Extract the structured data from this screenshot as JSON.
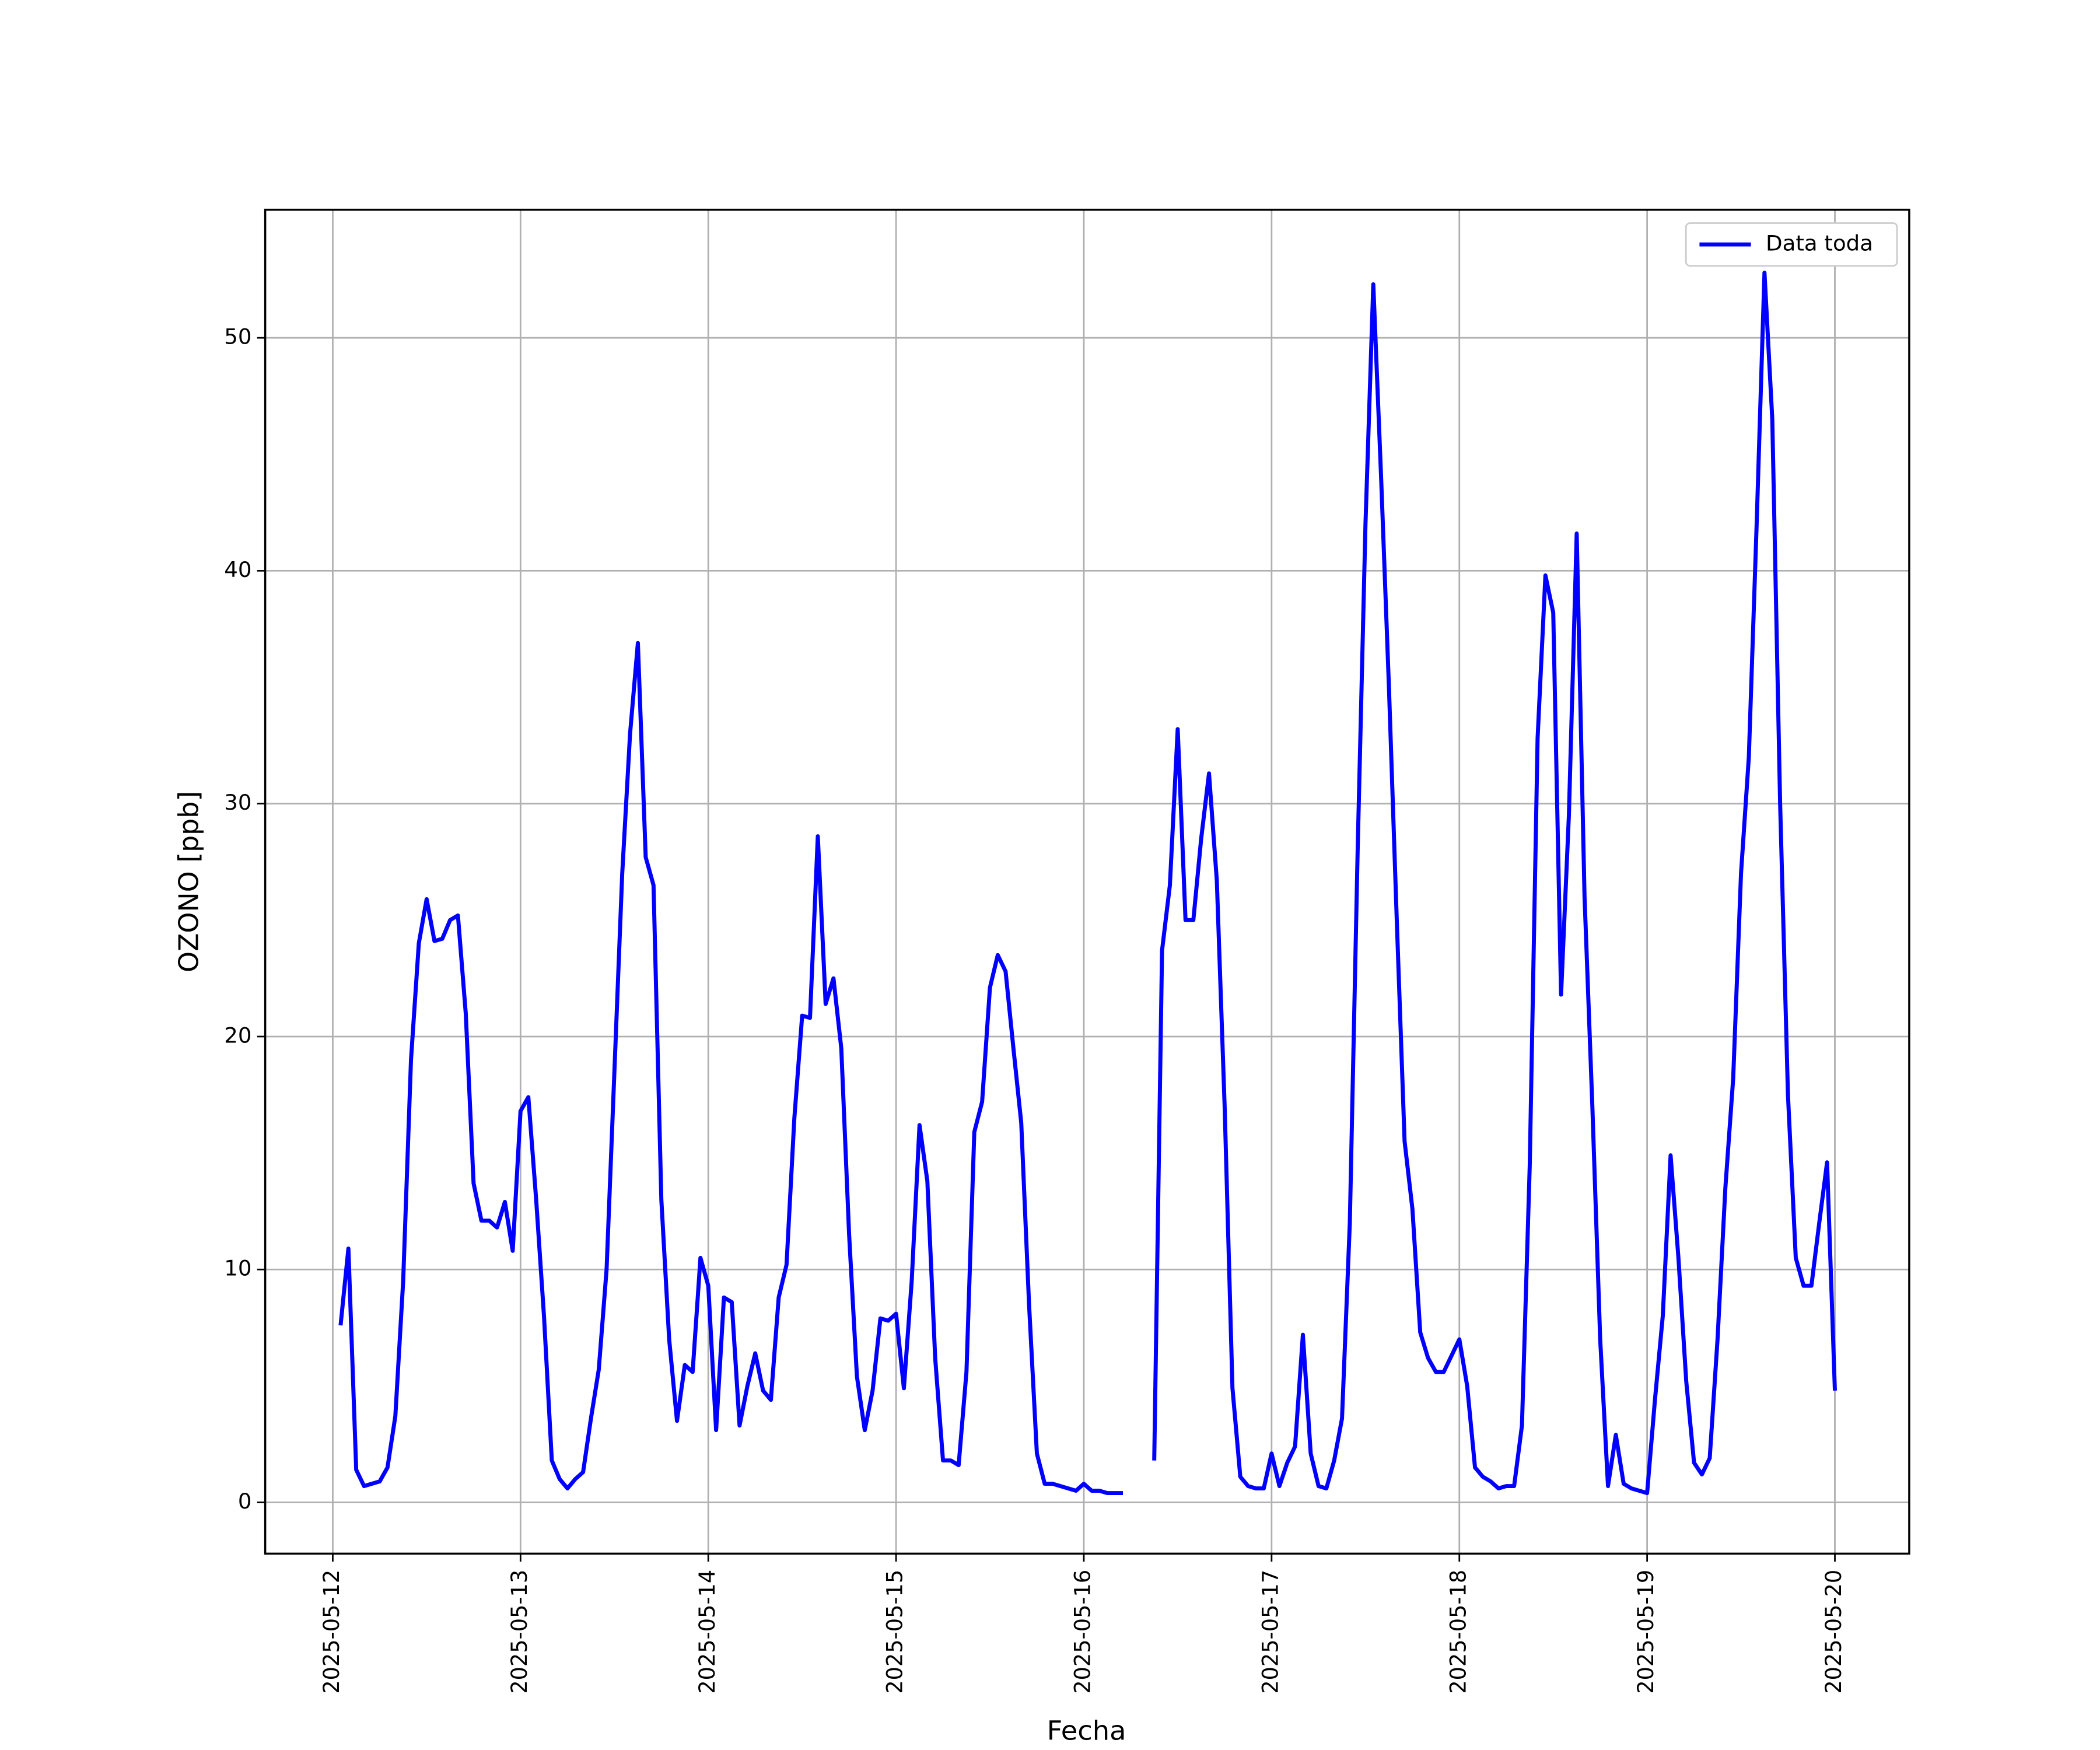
{
  "chart_data": {
    "type": "line",
    "xlabel": "Fecha",
    "ylabel": "OZONO [ppb]",
    "x": [
      "2025-05-12T01:00",
      "2025-05-12T02:00",
      "2025-05-12T03:00",
      "2025-05-12T04:00",
      "2025-05-12T05:00",
      "2025-05-12T06:00",
      "2025-05-12T07:00",
      "2025-05-12T08:00",
      "2025-05-12T09:00",
      "2025-05-12T10:00",
      "2025-05-12T11:00",
      "2025-05-12T12:00",
      "2025-05-12T13:00",
      "2025-05-12T14:00",
      "2025-05-12T15:00",
      "2025-05-12T16:00",
      "2025-05-12T17:00",
      "2025-05-12T18:00",
      "2025-05-12T19:00",
      "2025-05-12T20:00",
      "2025-05-12T21:00",
      "2025-05-12T22:00",
      "2025-05-12T23:00",
      "2025-05-13T00:00",
      "2025-05-13T01:00",
      "2025-05-13T02:00",
      "2025-05-13T03:00",
      "2025-05-13T04:00",
      "2025-05-13T05:00",
      "2025-05-13T06:00",
      "2025-05-13T07:00",
      "2025-05-13T08:00",
      "2025-05-13T09:00",
      "2025-05-13T10:00",
      "2025-05-13T11:00",
      "2025-05-13T12:00",
      "2025-05-13T13:00",
      "2025-05-13T14:00",
      "2025-05-13T15:00",
      "2025-05-13T16:00",
      "2025-05-13T17:00",
      "2025-05-13T18:00",
      "2025-05-13T19:00",
      "2025-05-13T20:00",
      "2025-05-13T21:00",
      "2025-05-13T22:00",
      "2025-05-13T23:00",
      "2025-05-14T00:00",
      "2025-05-14T01:00",
      "2025-05-14T02:00",
      "2025-05-14T03:00",
      "2025-05-14T04:00",
      "2025-05-14T05:00",
      "2025-05-14T06:00",
      "2025-05-14T07:00",
      "2025-05-14T08:00",
      "2025-05-14T09:00",
      "2025-05-14T10:00",
      "2025-05-14T11:00",
      "2025-05-14T12:00",
      "2025-05-14T13:00",
      "2025-05-14T14:00",
      "2025-05-14T15:00",
      "2025-05-14T16:00",
      "2025-05-14T17:00",
      "2025-05-14T18:00",
      "2025-05-14T19:00",
      "2025-05-14T20:00",
      "2025-05-14T21:00",
      "2025-05-14T22:00",
      "2025-05-14T23:00",
      "2025-05-15T00:00",
      "2025-05-15T01:00",
      "2025-05-15T02:00",
      "2025-05-15T03:00",
      "2025-05-15T04:00",
      "2025-05-15T05:00",
      "2025-05-15T06:00",
      "2025-05-15T07:00",
      "2025-05-15T08:00",
      "2025-05-15T09:00",
      "2025-05-15T10:00",
      "2025-05-15T11:00",
      "2025-05-15T12:00",
      "2025-05-15T13:00",
      "2025-05-15T14:00",
      "2025-05-15T15:00",
      "2025-05-15T16:00",
      "2025-05-15T17:00",
      "2025-05-15T18:00",
      "2025-05-15T19:00",
      "2025-05-15T20:00",
      "2025-05-15T21:00",
      "2025-05-15T22:00",
      "2025-05-15T23:00",
      "2025-05-16T00:00",
      "2025-05-16T01:00",
      "2025-05-16T02:00",
      "2025-05-16T03:00",
      "2025-05-16T04:00",
      "2025-05-16T05:00",
      "2025-05-16T06:00",
      "2025-05-16T07:00",
      "2025-05-16T08:00",
      "2025-05-16T09:00",
      "2025-05-16T10:00",
      "2025-05-16T11:00",
      "2025-05-16T12:00",
      "2025-05-16T13:00",
      "2025-05-16T14:00",
      "2025-05-16T15:00",
      "2025-05-16T16:00",
      "2025-05-16T17:00",
      "2025-05-16T18:00",
      "2025-05-16T19:00",
      "2025-05-16T20:00",
      "2025-05-16T21:00",
      "2025-05-16T22:00",
      "2025-05-16T23:00",
      "2025-05-17T00:00",
      "2025-05-17T01:00",
      "2025-05-17T02:00",
      "2025-05-17T03:00",
      "2025-05-17T04:00",
      "2025-05-17T05:00",
      "2025-05-17T06:00",
      "2025-05-17T07:00",
      "2025-05-17T08:00",
      "2025-05-17T09:00",
      "2025-05-17T10:00",
      "2025-05-17T11:00",
      "2025-05-17T12:00",
      "2025-05-17T13:00",
      "2025-05-17T14:00",
      "2025-05-17T15:00",
      "2025-05-17T16:00",
      "2025-05-17T17:00",
      "2025-05-17T18:00",
      "2025-05-17T19:00",
      "2025-05-17T20:00",
      "2025-05-17T21:00",
      "2025-05-17T22:00",
      "2025-05-17T23:00",
      "2025-05-18T00:00",
      "2025-05-18T01:00",
      "2025-05-18T02:00",
      "2025-05-18T03:00",
      "2025-05-18T04:00",
      "2025-05-18T05:00",
      "2025-05-18T06:00",
      "2025-05-18T07:00",
      "2025-05-18T08:00",
      "2025-05-18T09:00",
      "2025-05-18T10:00",
      "2025-05-18T11:00",
      "2025-05-18T12:00",
      "2025-05-18T13:00",
      "2025-05-18T14:00",
      "2025-05-18T15:00",
      "2025-05-18T16:00",
      "2025-05-18T17:00",
      "2025-05-18T18:00",
      "2025-05-18T19:00",
      "2025-05-18T20:00",
      "2025-05-18T21:00",
      "2025-05-18T22:00",
      "2025-05-18T23:00",
      "2025-05-19T00:00",
      "2025-05-19T01:00",
      "2025-05-19T02:00",
      "2025-05-19T03:00",
      "2025-05-19T04:00",
      "2025-05-19T05:00",
      "2025-05-19T06:00",
      "2025-05-19T07:00",
      "2025-05-19T08:00",
      "2025-05-19T09:00",
      "2025-05-19T10:00",
      "2025-05-19T11:00",
      "2025-05-19T12:00",
      "2025-05-19T13:00",
      "2025-05-19T14:00",
      "2025-05-19T15:00",
      "2025-05-19T16:00",
      "2025-05-19T17:00",
      "2025-05-19T18:00",
      "2025-05-19T19:00",
      "2025-05-19T20:00",
      "2025-05-19T21:00",
      "2025-05-19T22:00",
      "2025-05-19T23:00",
      "2025-05-20T00:00"
    ],
    "series": [
      {
        "name": "Data toda",
        "color": "#0000ff",
        "values": [
          7.6,
          10.9,
          1.4,
          0.7,
          0.8,
          0.9,
          1.5,
          3.7,
          9.5,
          19,
          24,
          25.9,
          24.1,
          24.2,
          25,
          25.2,
          21,
          13.7,
          12.1,
          12.1,
          11.8,
          12.9,
          10.8,
          16.8,
          17.4,
          13,
          8,
          1.8,
          1,
          0.6,
          1,
          1.3,
          3.6,
          5.7,
          10,
          18.5,
          27,
          33,
          36.9,
          27.7,
          26.5,
          13,
          7,
          3.5,
          5.9,
          5.6,
          10.5,
          9.3,
          3.1,
          8.8,
          8.6,
          3.3,
          5,
          6.4,
          4.8,
          4.4,
          8.8,
          10.2,
          16.5,
          20.9,
          20.8,
          28.6,
          21.4,
          22.5,
          19.5,
          11.5,
          5.4,
          3.1,
          4.8,
          7.9,
          7.8,
          8.1,
          4.9,
          9.5,
          16.2,
          13.8,
          6.2,
          1.8,
          1.8,
          1.6,
          5.6,
          15.9,
          17.2,
          22.1,
          23.5,
          22.8,
          19.5,
          16.3,
          8.5,
          2.1,
          0.8,
          0.8,
          0.7,
          0.6,
          0.5,
          0.8,
          0.5,
          0.5,
          0.4,
          0.4,
          0.4,
          null,
          null,
          null,
          1.8,
          23.7,
          26.5,
          33.2,
          25,
          25,
          28.5,
          31.3,
          26.7,
          17,
          4.9,
          1.1,
          0.7,
          0.6,
          0.6,
          2.1,
          0.7,
          1.7,
          2.4,
          7.2,
          2.1,
          0.7,
          0.6,
          1.8,
          3.6,
          12,
          28,
          42,
          52.3,
          44,
          35,
          25,
          15.5,
          12.6,
          7.3,
          6.2,
          5.6,
          5.6,
          6.3,
          7,
          5,
          1.5,
          1.1,
          0.9,
          0.6,
          0.7,
          0.7,
          3.3,
          14.5,
          32.8,
          39.8,
          38.2,
          21.8,
          29.5,
          41.6,
          26,
          17,
          7,
          0.7,
          2.9,
          0.8,
          0.6,
          0.5,
          0.4,
          4.4,
          8,
          14.9,
          10.5,
          5.2,
          1.7,
          1.2,
          1.9,
          7,
          13.5,
          18.2,
          27,
          32,
          42,
          52.8,
          46.5,
          30,
          17.5,
          10.5,
          9.3,
          9.3,
          12,
          14.6,
          4.8
        ]
      }
    ],
    "xlim": [
      "2025-05-11T15:22",
      "2025-05-20T09:30"
    ],
    "xticks": [
      "2025-05-12",
      "2025-05-13",
      "2025-05-14",
      "2025-05-15",
      "2025-05-16",
      "2025-05-17",
      "2025-05-18",
      "2025-05-19",
      "2025-05-20"
    ],
    "ylim": [
      -2.2,
      55.5
    ],
    "yticks": [
      0,
      10,
      20,
      30,
      40,
      50
    ],
    "grid": true,
    "legend": "upper right"
  }
}
